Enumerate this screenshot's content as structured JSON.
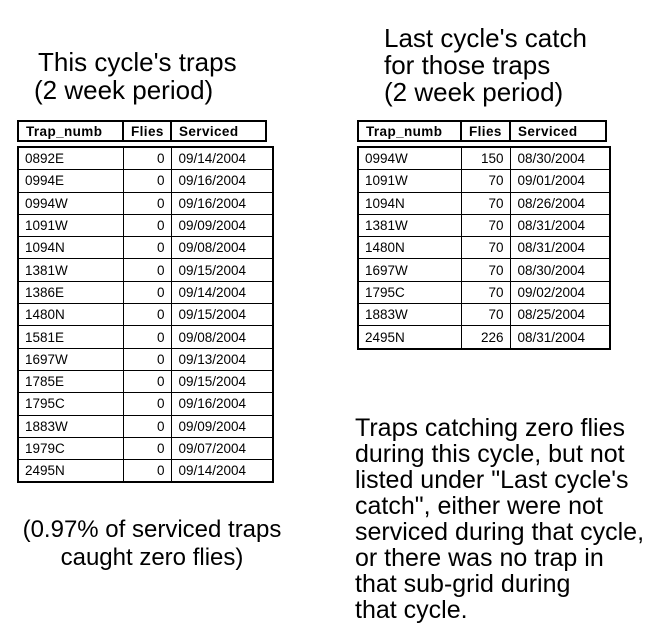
{
  "style": {
    "background": "#ffffff",
    "text_color": "#000000",
    "border_color": "#000000"
  },
  "left_section": {
    "title_lines": [
      "This cycle's traps",
      "(2 week period)"
    ],
    "table": {
      "headers": [
        "Trap_numb",
        "Flies",
        "Serviced"
      ],
      "rows": [
        [
          "0892E",
          "0",
          "09/14/2004"
        ],
        [
          "0994E",
          "0",
          "09/16/2004"
        ],
        [
          "0994W",
          "0",
          "09/16/2004"
        ],
        [
          "1091W",
          "0",
          "09/09/2004"
        ],
        [
          "1094N",
          "0",
          "09/08/2004"
        ],
        [
          "1381W",
          "0",
          "09/15/2004"
        ],
        [
          "1386E",
          "0",
          "09/14/2004"
        ],
        [
          "1480N",
          "0",
          "09/15/2004"
        ],
        [
          "1581E",
          "0",
          "09/08/2004"
        ],
        [
          "1697W",
          "0",
          "09/13/2004"
        ],
        [
          "1785E",
          "0",
          "09/15/2004"
        ],
        [
          "1795C",
          "0",
          "09/16/2004"
        ],
        [
          "1883W",
          "0",
          "09/09/2004"
        ],
        [
          "1979C",
          "0",
          "09/07/2004"
        ],
        [
          "2495N",
          "0",
          "09/14/2004"
        ]
      ]
    },
    "caption_lines": [
      "(0.97% of serviced traps",
      "caught zero flies)"
    ]
  },
  "right_section": {
    "title_lines": [
      "Last cycle's catch",
      "for those traps",
      "(2 week period)"
    ],
    "table": {
      "headers": [
        "Trap_numb",
        "Flies",
        "Serviced"
      ],
      "rows": [
        [
          "0994W",
          "150",
          "08/30/2004"
        ],
        [
          "1091W",
          "70",
          "09/01/2004"
        ],
        [
          "1094N",
          "70",
          "08/26/2004"
        ],
        [
          "1381W",
          "70",
          "08/31/2004"
        ],
        [
          "1480N",
          "70",
          "08/31/2004"
        ],
        [
          "1697W",
          "70",
          "08/30/2004"
        ],
        [
          "1795C",
          "70",
          "09/02/2004"
        ],
        [
          "1883W",
          "70",
          "08/25/2004"
        ],
        [
          "2495N",
          "226",
          "08/31/2004"
        ]
      ]
    },
    "note_lines": [
      "Traps catching zero flies",
      "during this cycle, but not",
      "listed under \"Last cycle's",
      "catch\", either were not",
      "serviced during that cycle,",
      "or there was no trap in",
      "that sub-grid during",
      "that cycle."
    ]
  }
}
